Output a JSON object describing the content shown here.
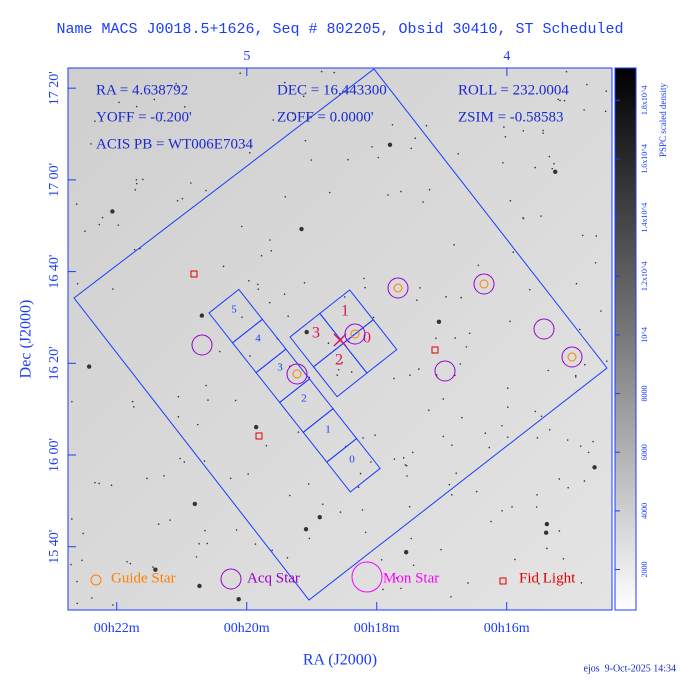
{
  "chart_data": {
    "type": "skymap",
    "title": "Name MACS J0018.5+1626, Seq # 802205, Obsid 30410, ST Scheduled",
    "xlabel": "RA (J2000)",
    "ylabel": "Dec (J2000)",
    "xlim": [
      22.75,
      14.38
    ],
    "xticks": [
      {
        "value": 22,
        "label": "00h22m"
      },
      {
        "value": 20,
        "label": "00h20m"
      },
      {
        "value": 18,
        "label": "00h18m"
      },
      {
        "value": 16,
        "label": "00h16m"
      }
    ],
    "x2lim": [
      5.6875,
      3.596
    ],
    "x2ticks": [
      5,
      4
    ],
    "ylim": [
      926.2,
      1044.4
    ],
    "yticks": [
      {
        "value": 940,
        "label": "15 40'"
      },
      {
        "value": 960,
        "label": "16 00'"
      },
      {
        "value": 980,
        "label": "16 20'"
      },
      {
        "value": 1000,
        "label": "16 40'"
      },
      {
        "value": 1020,
        "label": "17 00'"
      },
      {
        "value": 1040,
        "label": "17 20'"
      }
    ],
    "colorbar": {
      "label": "PSPC scaled density",
      "lim": [
        620,
        19100
      ],
      "ticks": [
        2000,
        4000,
        6000,
        8000,
        {
          "value": 10000,
          "label": "10^4"
        },
        {
          "value": 12000,
          "label": "1.2x10^4"
        },
        {
          "value": 14000,
          "label": "1.4x10^4"
        },
        {
          "value": 16000,
          "label": "1.6x10^4"
        },
        {
          "value": 18000,
          "label": "1.8x10^4"
        }
      ]
    },
    "info": [
      "RA = 4.638792",
      "DEC = 16.443300",
      "ROLL = 232.0004",
      "YOFF = -0.200'",
      "ZOFF = 0.0000'",
      "ZSIM = -0.58583",
      "ACIS PB = WT006E7034"
    ],
    "legend": [
      "Guide Star",
      "Acq Star",
      "Mon Star",
      "Fid Light"
    ],
    "acis_i_chips": [
      "3",
      "1",
      "0",
      "2"
    ],
    "acis_s_chips": [
      "5",
      "4",
      "3",
      "2",
      "1",
      "0"
    ],
    "footer": "ejos  9-Oct-2025 14:34"
  }
}
